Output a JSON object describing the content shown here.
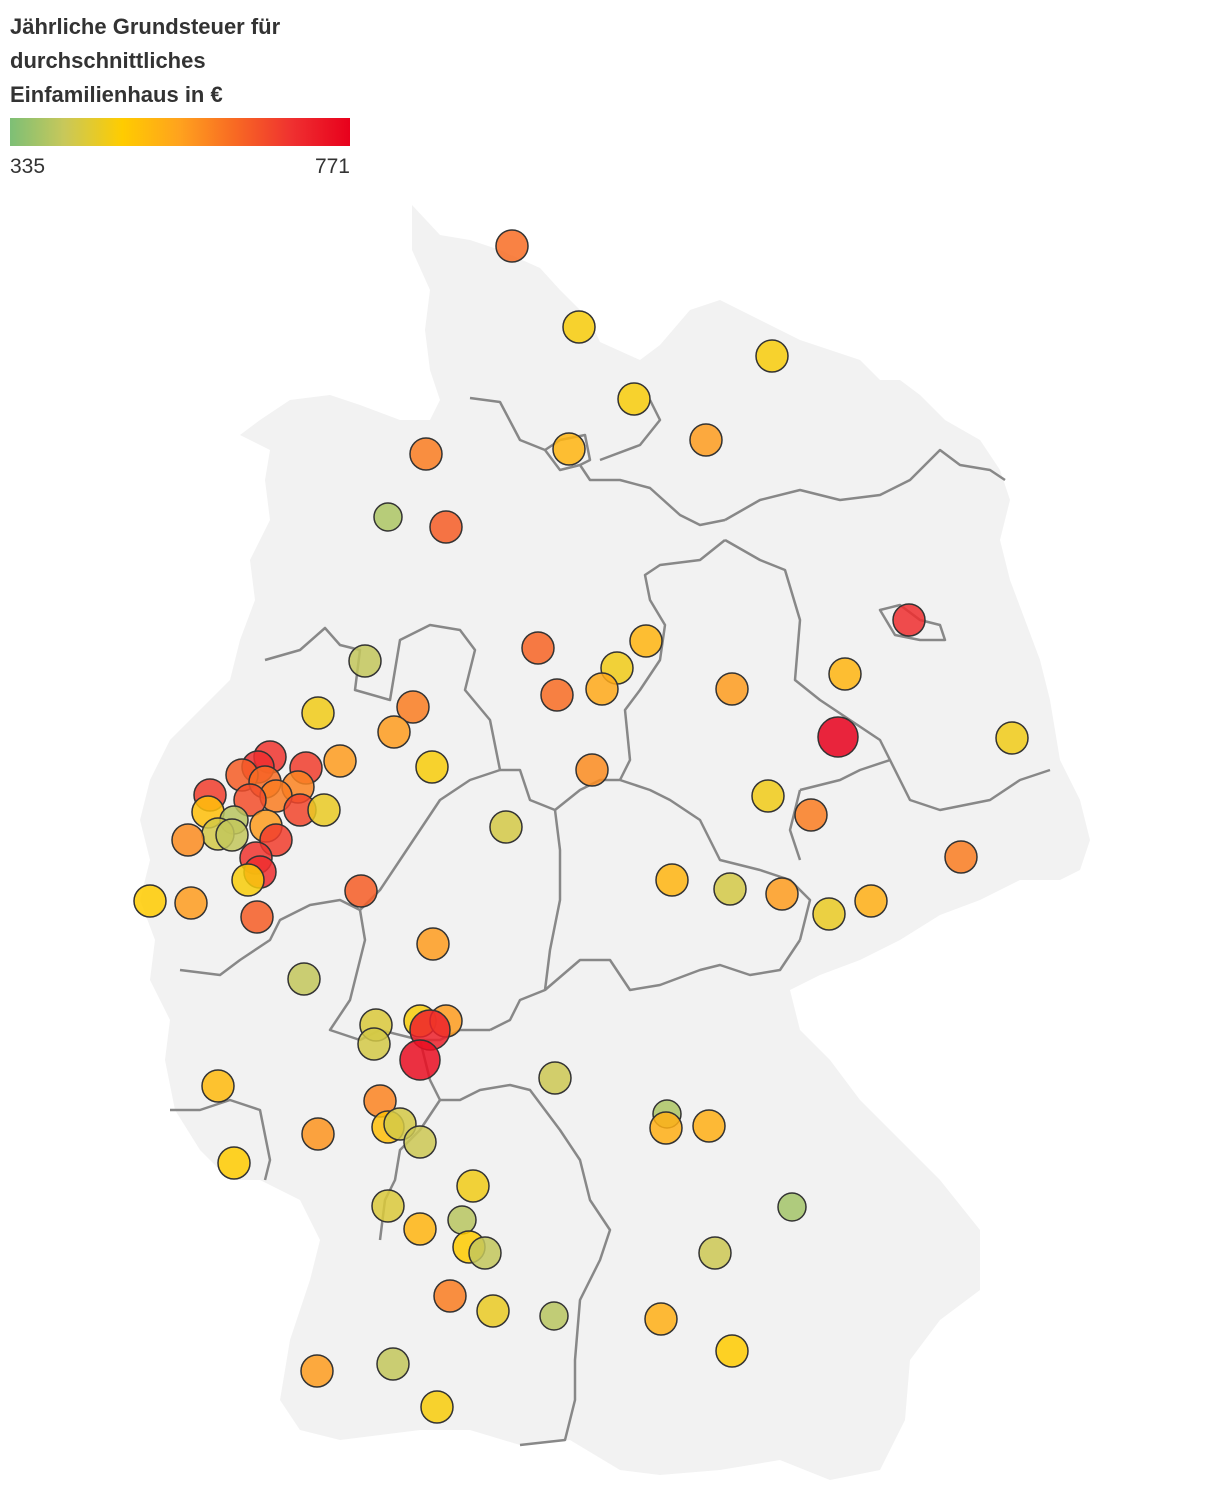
{
  "legend": {
    "title": "Jährliche Grundsteuer für durchschnittliches Einfamilienhaus in €",
    "min_label": "335",
    "max_label": "771",
    "scale_min": 335,
    "scale_max": 771,
    "gradient_colors": [
      "#7dbf76",
      "#c8c85a",
      "#ffcc00",
      "#ffa21e",
      "#f86a23",
      "#ef3030",
      "#e8001c"
    ]
  },
  "map": {
    "region": "Germany",
    "land_color": "#f2f2f2",
    "border_color": "#888888",
    "marker_stroke": "#333333",
    "marker_opacity": 0.85
  }
}
